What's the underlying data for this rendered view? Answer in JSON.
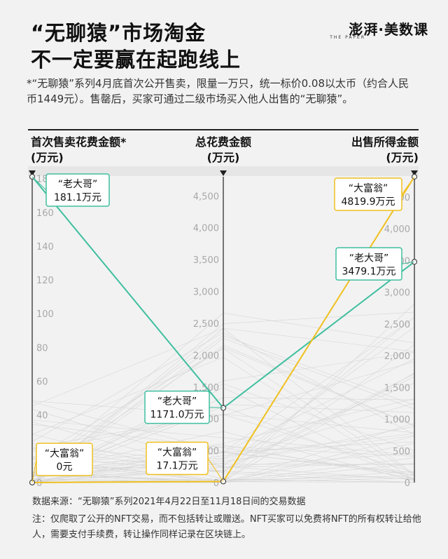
{
  "header": {
    "title_line1": "“无聊猿”市场淘金",
    "title_line2": "不一定要赢在起跑线上",
    "logo": "澎湃·美数课",
    "logo_sub": "THE PAPER"
  },
  "note": "*“无聊猿”系列4月底首次公开售卖，限量一万只，统一标价0.08以太币（约合人民币1449元）。售罄后，买家可通过二级市场买入他人出售的“无聊猿”。",
  "axis_headers": {
    "left": [
      "首次售卖花费金额*",
      "(万元)"
    ],
    "middle": [
      "总花费金额",
      "(万元)"
    ],
    "right": [
      "出售所得金额",
      "(万元)"
    ]
  },
  "source": "数据来源：“无聊猿”系列2021年4月22日至11月18日间的交易数据",
  "footer": "注：仅爬取了公开的NFT交易，而不包括转让或赠送。NFT买家可以免费将NFT的所有权转让给他人，需要支付手续费，转让操作同样记录在区块链上。",
  "colors": {
    "teal": "#3fbf9f",
    "gold": "#f0c020",
    "background": "#f2f2f2",
    "grid": "#cccccc",
    "axis": "#222222"
  },
  "chart_data": {
    "type": "parallel-coordinates",
    "axes": [
      {
        "name": "首次售卖花费金额",
        "unit": "万元",
        "ylim": [
          0,
          181.1
        ],
        "ticks": [
          0,
          20,
          40,
          60,
          80,
          100,
          120,
          140,
          160,
          180
        ]
      },
      {
        "name": "总花费金额",
        "unit": "万元",
        "ylim": [
          0,
          4800
        ],
        "ticks": [
          0,
          500,
          1000,
          1500,
          2000,
          2500,
          3000,
          3500,
          4000,
          4500
        ]
      },
      {
        "name": "出售所得金额",
        "unit": "万元",
        "ylim": [
          0,
          4819.9
        ],
        "ticks": [
          0,
          500,
          1000,
          1500,
          2000,
          2500,
          3000,
          3500,
          4000,
          4500
        ]
      }
    ],
    "tick_labels": {
      "left": [
        "0",
        "20",
        "40",
        "60",
        "80",
        "100",
        "120",
        "140",
        "160",
        "180"
      ],
      "middle": [
        "0",
        "500",
        "1,000",
        "1,500",
        "2,000",
        "2,500",
        "3,000",
        "3,500",
        "4,000",
        "4,500"
      ],
      "right": [
        "0",
        "500",
        "1,000",
        "1,500",
        "2,000",
        "2,500",
        "3,000",
        "3,500",
        "4,000",
        "4,500"
      ]
    },
    "series": [
      {
        "name": "“老大哥”",
        "color": "#3fbf9f",
        "values": [
          181.1,
          1171.0,
          3479.1
        ],
        "labels": [
          "181.1万元",
          "1171.0万元",
          "3479.1万元"
        ]
      },
      {
        "name": "“大富翁”",
        "color": "#f0c020",
        "values": [
          0,
          17.1,
          4819.9
        ],
        "labels": [
          "0元",
          "17.1万元",
          "4819.9万元"
        ]
      }
    ]
  }
}
